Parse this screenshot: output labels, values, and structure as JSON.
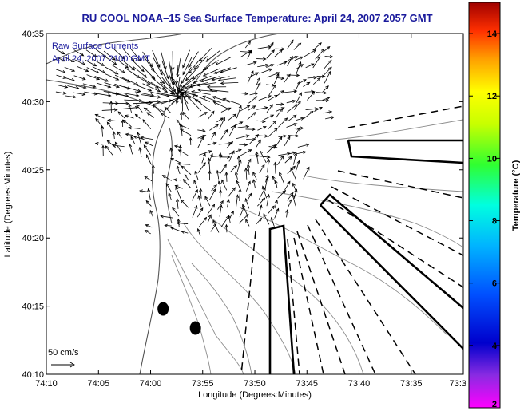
{
  "chart_data": {
    "type": "vector-field-map",
    "title": "RU COOL  NOAA–15  Sea Surface Temperature:  April 24, 2007 2057 GMT",
    "xlabel": "Longitude (Degrees:Minutes)",
    "ylabel": "Latitude (Degrees:Minutes)",
    "x_ticks": [
      {
        "value": -74.1667,
        "label": "74:10"
      },
      {
        "value": -74.0833,
        "label": "74:05"
      },
      {
        "value": -74.0,
        "label": "74:00"
      },
      {
        "value": -73.9167,
        "label": "73:55"
      },
      {
        "value": -73.8333,
        "label": "73:50"
      },
      {
        "value": -73.75,
        "label": "73:45"
      },
      {
        "value": -73.6667,
        "label": "73:40"
      },
      {
        "value": -73.5833,
        "label": "73:35"
      },
      {
        "value": -73.5,
        "label": "73:3"
      }
    ],
    "y_ticks": [
      {
        "value": 40.5833,
        "label": "40:35"
      },
      {
        "value": 40.5,
        "label": "40:30"
      },
      {
        "value": 40.4167,
        "label": "40:25"
      },
      {
        "value": 40.3333,
        "label": "40:20"
      },
      {
        "value": 40.25,
        "label": "40:15"
      },
      {
        "value": 40.1667,
        "label": "40:10"
      }
    ],
    "xlim": [
      -74.1667,
      -73.5
    ],
    "ylim": [
      40.1667,
      40.5833
    ],
    "grid": false,
    "annotations": [
      {
        "text": "Raw Surface Currents",
        "anchor": "top-left"
      },
      {
        "text": "April 24, 2007 2100 GMT",
        "anchor": "top-left"
      }
    ],
    "scale_arrow": {
      "label": "50 cm/s",
      "speed_cm_s": 50
    },
    "colorbar": {
      "label": "Temperature (°C)",
      "min": 2,
      "max": 15,
      "ticks": [
        2,
        4,
        6,
        8,
        10,
        12,
        14
      ],
      "colormap": "jet",
      "placement": "right"
    },
    "station_markers": [
      {
        "lon": -73.98,
        "lat": 40.2467
      },
      {
        "lon": -73.9283,
        "lat": 40.2233
      }
    ],
    "colors": {
      "title": "#1a1a9c",
      "annotation": "#1a1a9c",
      "vectors": "#000000",
      "contours": "#8c8c8c",
      "coast": "#555555"
    }
  }
}
